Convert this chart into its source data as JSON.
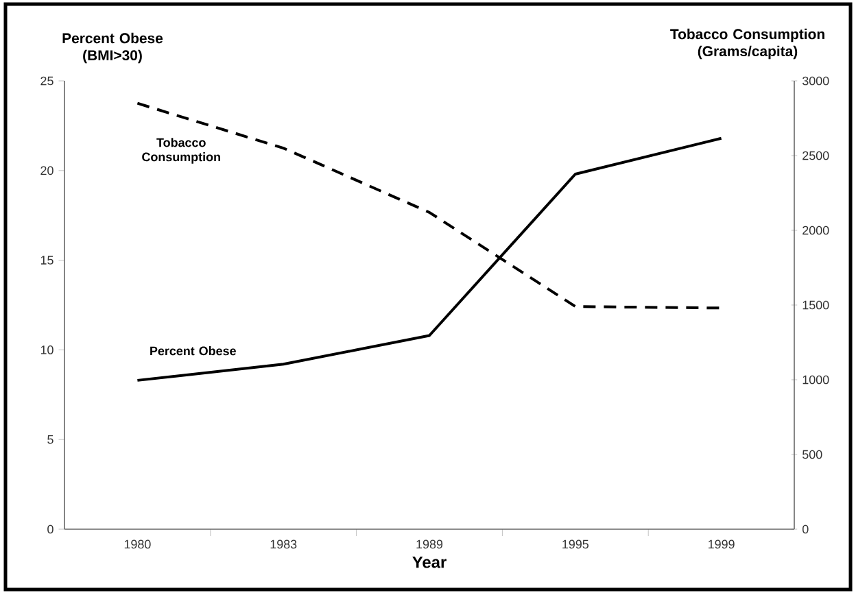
{
  "chart_data": {
    "type": "line",
    "xlabel": "Year",
    "ylabel": "Percent Obese (BMI>30)",
    "y2label": "Tobacco Consumption (Grams/capita)",
    "categories": [
      "1980",
      "1983",
      "1989",
      "1995",
      "1999"
    ],
    "series": [
      {
        "name": "Percent Obese",
        "color": "#000000",
        "line_style": "solid",
        "values": [
          8.3,
          9.2,
          10.8,
          19.8,
          21.8
        ]
      },
      {
        "name": "Tobacco Consumption",
        "color": "#000000",
        "line_style": "dashed",
        "axis": "y2",
        "values": [
          2850,
          2550,
          2120,
          1490,
          1480
        ]
      }
    ],
    "ylim": [
      0,
      25
    ],
    "yticks": [
      0,
      5,
      10,
      15,
      20,
      25
    ],
    "y2lim": [
      0,
      3000
    ],
    "y2ticks": [
      0,
      500,
      1000,
      1500,
      2000,
      2500,
      3000
    ],
    "grid": false,
    "marker": "none"
  }
}
